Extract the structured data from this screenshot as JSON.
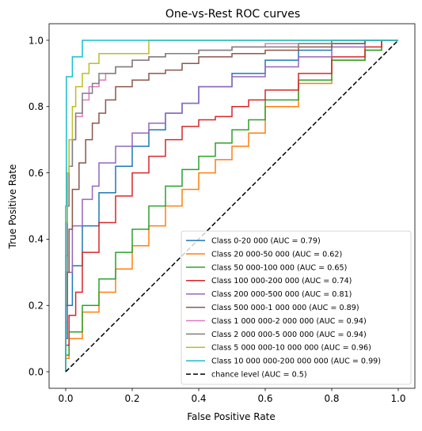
{
  "chart_data": {
    "type": "line",
    "title": "One-vs-Rest ROC curves",
    "xlabel": "False Positive Rate",
    "ylabel": "True Positive Rate",
    "xlim": [
      -0.05,
      1.05
    ],
    "ylim": [
      -0.05,
      1.05
    ],
    "xticks": [
      "0.0",
      "0.2",
      "0.4",
      "0.6",
      "0.8",
      "1.0"
    ],
    "yticks": [
      "0.0",
      "0.2",
      "0.4",
      "0.6",
      "0.8",
      "1.0"
    ],
    "grid": false,
    "legend_position": "lower right",
    "series": [
      {
        "name": "Class 0-20 000 (AUC = 0.79)",
        "color": "#1f77b4",
        "step": true,
        "x": [
          0,
          0.005,
          0.02,
          0.05,
          0.1,
          0.15,
          0.2,
          0.25,
          0.3,
          0.35,
          0.4,
          0.5,
          0.6,
          0.7,
          0.8,
          0.9,
          0.95,
          1.0
        ],
        "y": [
          0,
          0.1,
          0.2,
          0.32,
          0.44,
          0.54,
          0.62,
          0.68,
          0.73,
          0.78,
          0.81,
          0.86,
          0.9,
          0.94,
          0.97,
          0.99,
          1.0,
          1.0
        ]
      },
      {
        "name": "Class 20 000-50 000 (AUC = 0.62)",
        "color": "#ff7f0e",
        "step": true,
        "x": [
          0,
          0.01,
          0.05,
          0.1,
          0.15,
          0.2,
          0.25,
          0.3,
          0.35,
          0.4,
          0.45,
          0.5,
          0.55,
          0.6,
          0.7,
          0.8,
          0.9,
          0.95,
          1.0
        ],
        "y": [
          0,
          0.04,
          0.1,
          0.18,
          0.24,
          0.31,
          0.38,
          0.44,
          0.5,
          0.55,
          0.6,
          0.64,
          0.68,
          0.72,
          0.8,
          0.87,
          0.94,
          0.97,
          1.0
        ]
      },
      {
        "name": "Class 50 000-100 000 (AUC = 0.65)",
        "color": "#2ca02c",
        "step": true,
        "x": [
          0,
          0.01,
          0.05,
          0.1,
          0.15,
          0.2,
          0.25,
          0.3,
          0.35,
          0.4,
          0.45,
          0.5,
          0.55,
          0.6,
          0.7,
          0.8,
          0.9,
          0.95,
          1.0
        ],
        "y": [
          0,
          0.05,
          0.12,
          0.2,
          0.28,
          0.36,
          0.43,
          0.5,
          0.56,
          0.61,
          0.65,
          0.69,
          0.73,
          0.76,
          0.82,
          0.88,
          0.94,
          0.97,
          1.0
        ]
      },
      {
        "name": "Class 100 000-200 000 (AUC = 0.74)",
        "color": "#d62728",
        "step": true,
        "x": [
          0,
          0.01,
          0.03,
          0.05,
          0.1,
          0.15,
          0.2,
          0.25,
          0.3,
          0.35,
          0.4,
          0.45,
          0.5,
          0.55,
          0.6,
          0.7,
          0.8,
          0.9,
          0.95,
          1.0
        ],
        "y": [
          0,
          0.08,
          0.17,
          0.24,
          0.36,
          0.45,
          0.53,
          0.6,
          0.65,
          0.7,
          0.74,
          0.76,
          0.77,
          0.8,
          0.82,
          0.85,
          0.9,
          0.95,
          0.98,
          1.0
        ]
      },
      {
        "name": "Class 200 000-500 000 (AUC = 0.81)",
        "color": "#9467bd",
        "step": true,
        "x": [
          0,
          0.005,
          0.02,
          0.05,
          0.08,
          0.1,
          0.15,
          0.2,
          0.25,
          0.3,
          0.35,
          0.4,
          0.5,
          0.6,
          0.7,
          0.8,
          0.9,
          1.0
        ],
        "y": [
          0,
          0.15,
          0.3,
          0.44,
          0.52,
          0.56,
          0.63,
          0.68,
          0.72,
          0.75,
          0.78,
          0.81,
          0.86,
          0.89,
          0.92,
          0.95,
          0.98,
          1.0
        ]
      },
      {
        "name": "Class 500 000-1 000 000 (AUC = 0.89)",
        "color": "#8c564b",
        "step": true,
        "x": [
          0,
          0.005,
          0.01,
          0.02,
          0.04,
          0.06,
          0.08,
          0.1,
          0.12,
          0.15,
          0.2,
          0.25,
          0.3,
          0.35,
          0.4,
          0.5,
          0.6,
          0.7,
          0.8,
          0.9,
          1.0
        ],
        "y": [
          0,
          0.2,
          0.3,
          0.43,
          0.55,
          0.63,
          0.7,
          0.75,
          0.78,
          0.82,
          0.86,
          0.88,
          0.9,
          0.91,
          0.93,
          0.95,
          0.96,
          0.97,
          0.98,
          0.99,
          1.0
        ]
      },
      {
        "name": "Class 1 000 000-2 000 000 (AUC = 0.94)",
        "color": "#e377c2",
        "step": true,
        "x": [
          0,
          0.005,
          0.01,
          0.02,
          0.03,
          0.05,
          0.07,
          0.1,
          0.12,
          0.15,
          0.2,
          0.25,
          0.3,
          0.4,
          0.5,
          0.6,
          0.7,
          0.8,
          0.9,
          1.0
        ],
        "y": [
          0,
          0.35,
          0.5,
          0.62,
          0.7,
          0.77,
          0.82,
          0.86,
          0.88,
          0.9,
          0.92,
          0.94,
          0.95,
          0.96,
          0.97,
          0.98,
          0.99,
          0.99,
          1.0,
          1.0
        ]
      },
      {
        "name": "Class 2 000 000-5 000 000 (AUC = 0.94)",
        "color": "#7f7f7f",
        "step": true,
        "x": [
          0,
          0.005,
          0.01,
          0.02,
          0.03,
          0.05,
          0.08,
          0.1,
          0.15,
          0.2,
          0.25,
          0.3,
          0.4,
          0.5,
          0.6,
          0.7,
          0.8,
          0.9,
          1.0
        ],
        "y": [
          0,
          0.3,
          0.5,
          0.62,
          0.7,
          0.78,
          0.84,
          0.87,
          0.9,
          0.92,
          0.94,
          0.95,
          0.96,
          0.97,
          0.98,
          0.98,
          0.99,
          1.0,
          1.0
        ]
      },
      {
        "name": "Class 5 000 000-10 000 000 (AUC = 0.96)",
        "color": "#bcbd22",
        "step": true,
        "x": [
          0,
          0.005,
          0.01,
          0.02,
          0.03,
          0.05,
          0.07,
          0.1,
          0.15,
          0.2,
          0.25,
          0.27,
          0.3,
          0.4,
          0.5,
          0.6,
          0.7,
          0.8,
          0.9,
          1.0
        ],
        "y": [
          0,
          0.45,
          0.6,
          0.7,
          0.8,
          0.86,
          0.9,
          0.93,
          0.96,
          0.96,
          0.96,
          1.0,
          1.0,
          1.0,
          1.0,
          1.0,
          1.0,
          1.0,
          1.0,
          1.0
        ]
      },
      {
        "name": "Class 10 000 000-200 000 000 (AUC = 0.99)",
        "color": "#17becf",
        "step": true,
        "x": [
          0,
          0.002,
          0.005,
          0.02,
          0.05,
          0.1,
          0.2,
          0.3,
          0.5,
          0.7,
          1.0
        ],
        "y": [
          0,
          0.5,
          0.89,
          0.89,
          0.95,
          1.0,
          1.0,
          1.0,
          1.0,
          1.0,
          1.0
        ]
      },
      {
        "name": "chance level (AUC = 0.5)",
        "color": "#000000",
        "dashed": true,
        "x": [
          0,
          1
        ],
        "y": [
          0,
          1
        ]
      }
    ]
  }
}
